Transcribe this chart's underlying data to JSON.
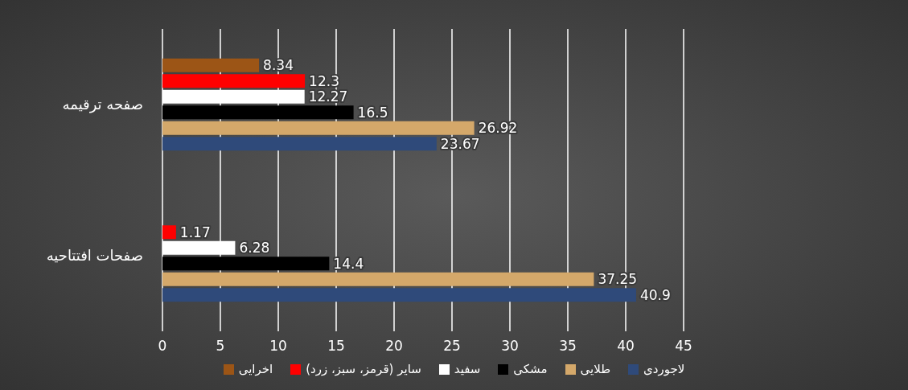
{
  "chart_data": {
    "type": "bar",
    "orientation": "horizontal",
    "categories": [
      "صفحه ترقیمه",
      "صفحات افتتاحیه"
    ],
    "series": [
      {
        "name": "اخرایی",
        "color": "#9c5516",
        "values": [
          8.34,
          null
        ]
      },
      {
        "name": "سایر (قرمز، سبز، زرد)",
        "color": "#ff0000",
        "values": [
          12.3,
          1.17
        ]
      },
      {
        "name": "سفید",
        "color": "#ffffff",
        "values": [
          12.27,
          6.28
        ]
      },
      {
        "name": "مشکی",
        "color": "#000000",
        "values": [
          16.5,
          14.4
        ]
      },
      {
        "name": "طلایی",
        "color": "#d4a86a",
        "values": [
          26.92,
          37.25
        ]
      },
      {
        "name": "لاجوردی",
        "color": "#2f4a7a",
        "values": [
          23.67,
          40.9
        ]
      }
    ],
    "xlim": [
      0,
      45
    ],
    "xticks": [
      0,
      5,
      10,
      15,
      20,
      25,
      30,
      35,
      40,
      45
    ],
    "grid": "x",
    "legend": "bottom",
    "data_labels": true
  }
}
